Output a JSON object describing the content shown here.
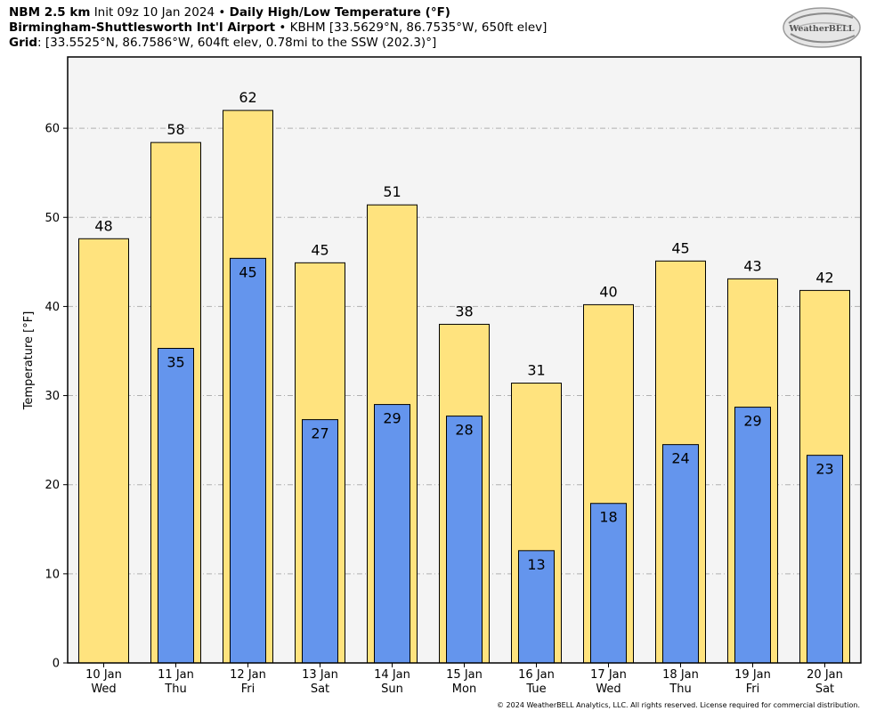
{
  "header": {
    "line1_model": "NBM 2.5 km",
    "line1_init": "Init 09z 10 Jan 2024",
    "line1_sep": "•",
    "line1_title": "Daily High/Low Temperature (°F)",
    "line2_station": "Birmingham-Shuttlesworth Int'l Airport",
    "line2_sep": "•",
    "line2_info": "KBHM [33.5629°N, 86.7535°W, 650ft elev]",
    "line3_label": "Grid",
    "line3_info": ": [33.5525°N, 86.7586°W, 604ft elev, 0.78mi to the SSW (202.3)°]"
  },
  "logo_text": "WeatherBELL",
  "copyright": "© 2024 WeatherBELL Analytics, LLC. All rights reserved. License required for commercial distribution.",
  "colors": {
    "high_bar": "#ffe37e",
    "low_bar": "#6495ed",
    "plot_bg": "#f4f4f4",
    "grid": "#b0b0b0"
  },
  "chart_data": {
    "type": "bar",
    "title": "Daily High/Low Temperature (°F)",
    "ylabel": "Temperature [°F]",
    "xlabel": "",
    "ylim": [
      0,
      68
    ],
    "yticks": [
      0,
      10,
      20,
      30,
      40,
      50,
      60
    ],
    "grid": true,
    "categories": [
      {
        "date": "10 Jan",
        "day": "Wed"
      },
      {
        "date": "11 Jan",
        "day": "Thu"
      },
      {
        "date": "12 Jan",
        "day": "Fri"
      },
      {
        "date": "13 Jan",
        "day": "Sat"
      },
      {
        "date": "14 Jan",
        "day": "Sun"
      },
      {
        "date": "15 Jan",
        "day": "Mon"
      },
      {
        "date": "16 Jan",
        "day": "Tue"
      },
      {
        "date": "17 Jan",
        "day": "Wed"
      },
      {
        "date": "18 Jan",
        "day": "Thu"
      },
      {
        "date": "19 Jan",
        "day": "Fri"
      },
      {
        "date": "20 Jan",
        "day": "Sat"
      }
    ],
    "series": [
      {
        "values": [
          47.6,
          58.4,
          62.0,
          44.9,
          51.4,
          38.0,
          31.4,
          40.2,
          45.1,
          43.1,
          41.8
        ],
        "labels": [
          "48",
          "58",
          "62",
          "45",
          "51",
          "38",
          "31",
          "40",
          "45",
          "43",
          "42"
        ]
      },
      {
        "values": [
          null,
          35.3,
          45.4,
          27.3,
          29.0,
          27.7,
          12.6,
          17.9,
          24.5,
          28.7,
          23.3
        ],
        "labels": [
          null,
          "35",
          "45",
          "27",
          "29",
          "28",
          "13",
          "18",
          "24",
          "29",
          "23"
        ]
      }
    ]
  }
}
